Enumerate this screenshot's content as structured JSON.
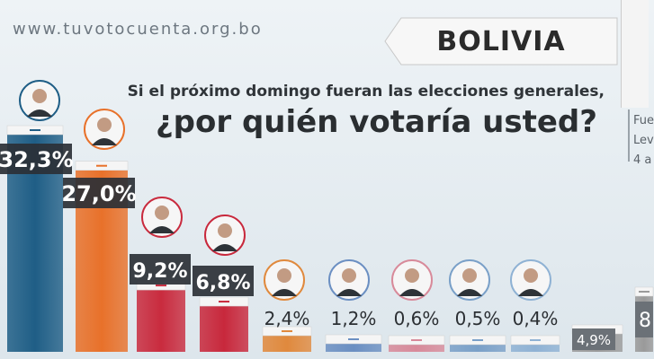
{
  "header": {
    "website": "www.tuvotocuenta.org.bo",
    "country": "BOLIVIA",
    "subquestion": "Si el próximo domingo fueran las elecciones generales,",
    "question": "¿por quién votaría usted?",
    "source_lines": [
      "Fue",
      "Lev",
      "4 a"
    ]
  },
  "chart_data": {
    "type": "bar",
    "title": "¿por quién votaría usted?",
    "categories": [
      "",
      "",
      "",
      "",
      "",
      "",
      "",
      "",
      "",
      "",
      ""
    ],
    "values": [
      32.3,
      27.0,
      9.2,
      6.8,
      2.4,
      1.2,
      0.6,
      0.5,
      0.4,
      4.9,
      8
    ],
    "value_labels": [
      "32,3%",
      "27,0%",
      "9,2%",
      "6,8%",
      "2,4%",
      "1,2%",
      "0,6%",
      "0,5%",
      "0,4%",
      "4,9%",
      "8"
    ],
    "colors": [
      "#1f5e86",
      "#e8712a",
      "#c92b3e",
      "#c8283c",
      "#e0893d",
      "#6b8fc2",
      "#d88a9a",
      "#7aa0c8",
      "#8fb2d4",
      "#9a9a9a",
      "#9a9a9a"
    ],
    "portraits": [
      true,
      true,
      true,
      true,
      true,
      true,
      true,
      true,
      true,
      false,
      false
    ],
    "ylim": [
      0,
      32.3
    ],
    "grid": false,
    "legend": "none"
  }
}
